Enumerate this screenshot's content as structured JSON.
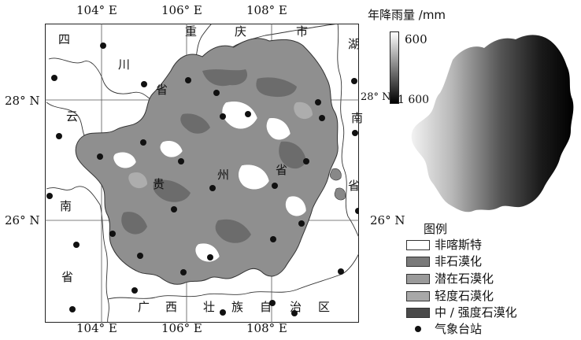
{
  "axes": {
    "lon_top": [
      "104° E",
      "106° E",
      "108° E"
    ],
    "lon_bottom": [
      "104° E",
      "106° E",
      "108° E"
    ],
    "lat_left": [
      "28° N",
      "26° N"
    ],
    "lat_right": [
      "28° N",
      "26° N"
    ]
  },
  "place_labels": {
    "sichuan": [
      "四",
      "川",
      "省"
    ],
    "chongqing": [
      "重",
      "庆",
      "市"
    ],
    "hubei": [
      "湖",
      "南"
    ],
    "yunnan": [
      "云",
      "南",
      "省"
    ],
    "guizhou": [
      "贵",
      "州",
      "省"
    ],
    "hunan_right": [
      "省"
    ],
    "guangxi": [
      "广",
      "西",
      "壮",
      "族",
      "自",
      "治",
      "区"
    ]
  },
  "precipitation": {
    "title": "年降雨量 /mm",
    "max_label": "600",
    "min_label": "1 600"
  },
  "legend": {
    "title": "图例",
    "items": [
      {
        "label": "非喀斯特",
        "color": "#ffffff"
      },
      {
        "label": "非石漠化",
        "color": "#7a7a7a"
      },
      {
        "label": "潜在石漠化",
        "color": "#9a9a9a"
      },
      {
        "label": "轻度石漠化",
        "color": "#a8a8a8"
      },
      {
        "label": "中 / 强度石漠化",
        "color": "#4a4a4a"
      },
      {
        "label": "气象台站",
        "color": "#111111"
      }
    ]
  }
}
